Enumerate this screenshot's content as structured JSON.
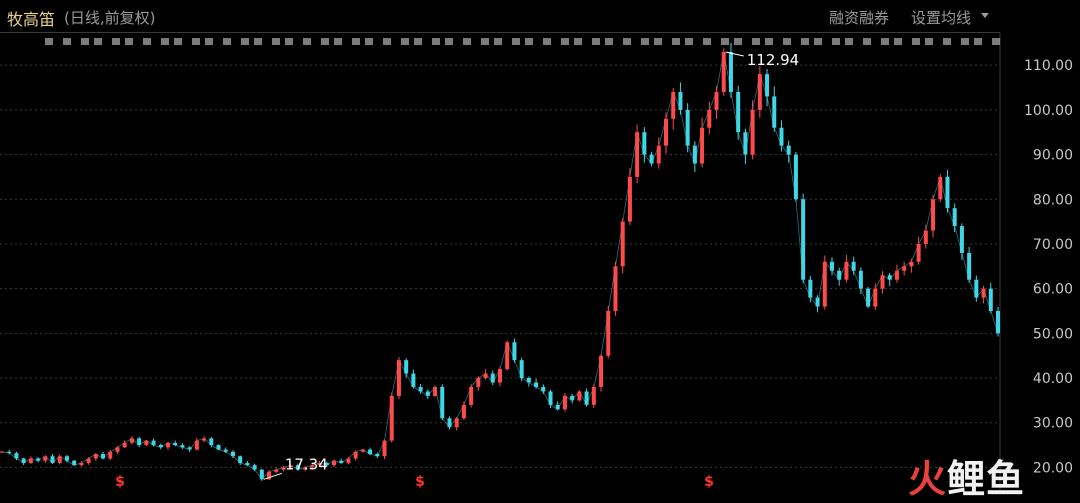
{
  "header": {
    "stock_name": "牧高笛",
    "subtitle": "(日线,前复权)",
    "menu_margin": "融资融券",
    "menu_ma": "设置均线"
  },
  "watermark": {
    "part1": "火",
    "part2": "鲤鱼"
  },
  "colors": {
    "up": "#ff4a4a",
    "down": "#3fd6e6",
    "grid": "#3a3a3a",
    "annotation": "#ffffff",
    "event_marker": "#ff3030"
  },
  "event_markers": {
    "symbol": "$",
    "dates": [
      "2019-01",
      "2020-01",
      "2021-01"
    ]
  },
  "chart_data": {
    "type": "line",
    "subtype": "candlestick-daily",
    "title": "",
    "ylim": [
      14.5,
      117.2
    ],
    "y_ticks": [
      "20.00",
      "30.00",
      "40.00",
      "50.00",
      "60.00",
      "70.00",
      "80.00",
      "90.00",
      "100.00",
      "110.00"
    ],
    "y_axis_side": "right",
    "grid": true,
    "annotations": [
      {
        "label": "112.94",
        "value": 112.94,
        "type": "max"
      },
      {
        "label": "17.34",
        "value": 17.34,
        "type": "min"
      }
    ],
    "series": [
      {
        "values": [
          23.5,
          23.2,
          22.0,
          21.0,
          22.0,
          21.5,
          22.5,
          21.0,
          22.5,
          21.5,
          20.5,
          21.0,
          22.0,
          23.0,
          22.0,
          23.5,
          24.5,
          25.5,
          26.5,
          25.0,
          26.0,
          25.0,
          24.5,
          25.5,
          25.0,
          24.5,
          24.0,
          26.0,
          26.5,
          25.0,
          24.0,
          23.5,
          22.5,
          21.0,
          20.5,
          19.5,
          17.34,
          19.0,
          19.5,
          20.0,
          20.5,
          19.5,
          20.0,
          20.5,
          21.0,
          20.5,
          21.5,
          21.0,
          22.0,
          23.5,
          24.0,
          23.0,
          22.5,
          26.0,
          36.0,
          44.0,
          41.0,
          38.0,
          37.0,
          36.0,
          38.0,
          31.0,
          29.0,
          31.0,
          34.0,
          38.0,
          40.0,
          41.0,
          39.0,
          42.0,
          48.0,
          44.0,
          40.0,
          39.0,
          38.0,
          37.0,
          34.0,
          33.0,
          36.0,
          35.0,
          37.0,
          34.0,
          38.0,
          45.0,
          55.0,
          65.0,
          75.0,
          85.0,
          95.0,
          90.0,
          88.0,
          92.0,
          98.0,
          104.0,
          100.0,
          92.0,
          88.0,
          96.0,
          100.0,
          104.0,
          112.94,
          104.0,
          95.0,
          90.0,
          100.0,
          108.0,
          103.0,
          96.0,
          92.0,
          90.0,
          80.0,
          62.0,
          58.0,
          56.0,
          66.0,
          64.0,
          62.0,
          66.0,
          64.0,
          60.0,
          56.0,
          60.0,
          63.0,
          62.0,
          64.0,
          65.0,
          66.0,
          70.0,
          73.0,
          80.0,
          85.0,
          78.0,
          74.0,
          68.0,
          62.0,
          58.0,
          60.0,
          55.0,
          50.0
        ]
      }
    ]
  }
}
